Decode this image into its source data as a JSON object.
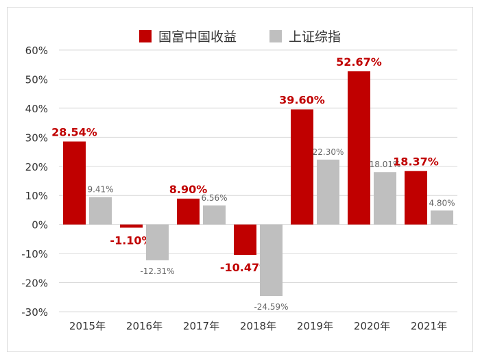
{
  "chart_data": {
    "type": "bar",
    "categories": [
      "2015年",
      "2016年",
      "2017年",
      "2018年",
      "2019年",
      "2020年",
      "2021年"
    ],
    "series": [
      {
        "name": "国富中国收益",
        "color": "#c00000",
        "values": [
          28.54,
          -1.1,
          8.9,
          -10.47,
          39.6,
          52.67,
          18.37
        ],
        "labels": [
          "28.54%",
          "-1.10%",
          "8.90%",
          "-10.47%",
          "39.60%",
          "52.67%",
          "18.37%"
        ]
      },
      {
        "name": "上证综指",
        "color": "#bfbfbf",
        "values": [
          9.41,
          -12.31,
          6.56,
          -24.59,
          22.3,
          18.01,
          4.8
        ],
        "labels": [
          "9.41%",
          "-12.31%",
          "6.56%",
          "-24.59%",
          "22.30%",
          "18.01%",
          "4.80%"
        ]
      }
    ],
    "ylim": [
      -30,
      60
    ],
    "yticks": [
      60,
      50,
      40,
      30,
      20,
      10,
      0,
      -10,
      -20,
      -30
    ],
    "ytick_labels": [
      "60%",
      "50%",
      "40%",
      "30%",
      "20%",
      "10%",
      "0%",
      "-10%",
      "-20%",
      "-30%"
    ],
    "grid": true,
    "legend_position": "top-center"
  }
}
